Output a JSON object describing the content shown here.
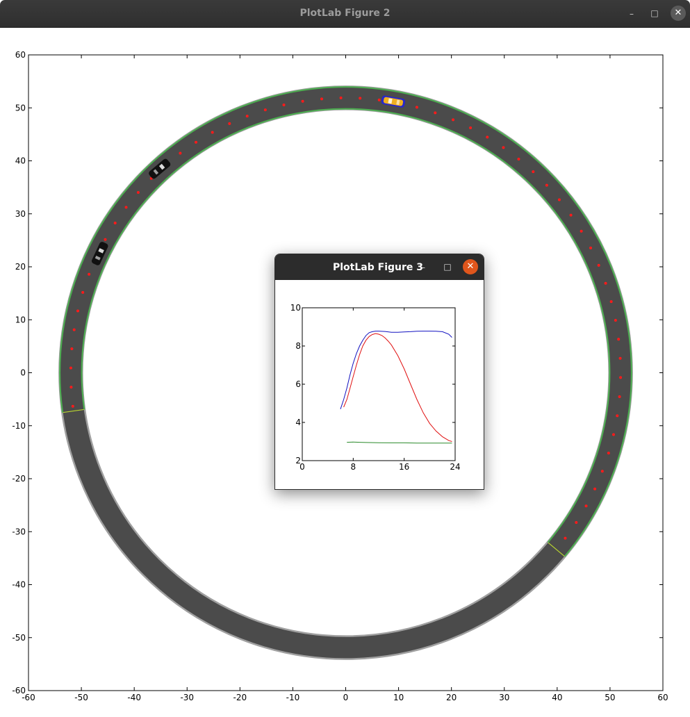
{
  "window_main": {
    "title": "PlotLab Figure 2",
    "controls": {
      "minimize": "–",
      "maximize": "□",
      "close": "✕"
    }
  },
  "window_inset": {
    "title": "PlotLab Figure 3",
    "controls": {
      "minimize": "–",
      "maximize": "□",
      "close": "✕"
    }
  },
  "chart_data": [
    {
      "type": "scatter",
      "xlim": [
        -60,
        60
      ],
      "ylim": [
        -60,
        60
      ],
      "x_ticks": [
        -60,
        -50,
        -40,
        -30,
        -20,
        -10,
        0,
        10,
        20,
        30,
        40,
        50,
        60
      ],
      "y_ticks": [
        -60,
        -50,
        -40,
        -30,
        -20,
        -10,
        0,
        10,
        20,
        30,
        40,
        50,
        60
      ],
      "grid": false,
      "track": {
        "center": [
          0,
          0
        ],
        "inner_radius": 50,
        "outer_radius": 54,
        "highlighted_arc_deg": [
          -40,
          188
        ],
        "road_color": "#4b4b4b",
        "highlight_edge_color": "#4caf50",
        "edge_color": "#a0a0a0",
        "boundary_color": "#b8d430"
      },
      "waypoints": {
        "radius": 52,
        "from_deg": -37,
        "to_deg": 187,
        "step_deg": 4,
        "color": "#ff1a1a"
      },
      "vehicles": [
        {
          "name": "ego",
          "x": 9,
          "y": 51.2,
          "heading_deg": -10,
          "color": "#2828c8",
          "body": "#f0b020"
        },
        {
          "name": "car-a",
          "x": -35.2,
          "y": 38.5,
          "heading_deg": 220,
          "color": "#111111",
          "body": "#111111"
        },
        {
          "name": "car-b",
          "x": -46.5,
          "y": 22.5,
          "heading_deg": 245,
          "color": "#111111",
          "body": "#111111"
        }
      ]
    },
    {
      "type": "line",
      "xlim": [
        0,
        24
      ],
      "ylim": [
        2,
        10
      ],
      "x_ticks": [
        0,
        8,
        16,
        24
      ],
      "y_ticks": [
        2,
        4,
        6,
        8,
        10
      ],
      "grid": false,
      "series": [
        {
          "color": "#1010c0",
          "x": [
            6,
            6.5,
            7,
            7.5,
            8,
            8.5,
            9,
            9.5,
            10,
            10.5,
            11,
            11.5,
            12,
            13,
            14,
            15,
            16,
            17,
            18,
            19,
            20,
            21,
            22,
            23,
            23.5
          ],
          "y": [
            4.7,
            5.2,
            5.8,
            6.5,
            7.1,
            7.6,
            8.0,
            8.3,
            8.55,
            8.7,
            8.75,
            8.78,
            8.78,
            8.76,
            8.72,
            8.72,
            8.74,
            8.75,
            8.77,
            8.78,
            8.78,
            8.77,
            8.75,
            8.62,
            8.45
          ]
        },
        {
          "color": "#e01010",
          "x": [
            6.5,
            7,
            7.5,
            8,
            8.5,
            9,
            9.5,
            10,
            10.5,
            11,
            11.5,
            12,
            12.5,
            13,
            13.5,
            14,
            15,
            16,
            17,
            18,
            19,
            20,
            21,
            22,
            23,
            23.5
          ],
          "y": [
            4.8,
            5.2,
            5.8,
            6.4,
            7.0,
            7.55,
            8.0,
            8.3,
            8.5,
            8.6,
            8.65,
            8.62,
            8.55,
            8.42,
            8.25,
            8.05,
            7.5,
            6.8,
            6.0,
            5.2,
            4.5,
            3.95,
            3.55,
            3.25,
            3.05,
            3.0
          ]
        },
        {
          "color": "#2a8a2a",
          "x": [
            7,
            8,
            9,
            10,
            12,
            14,
            16,
            18,
            20,
            22,
            23.5
          ],
          "y": [
            2.96,
            2.97,
            2.96,
            2.95,
            2.94,
            2.93,
            2.93,
            2.92,
            2.92,
            2.92,
            2.92
          ]
        }
      ]
    }
  ]
}
